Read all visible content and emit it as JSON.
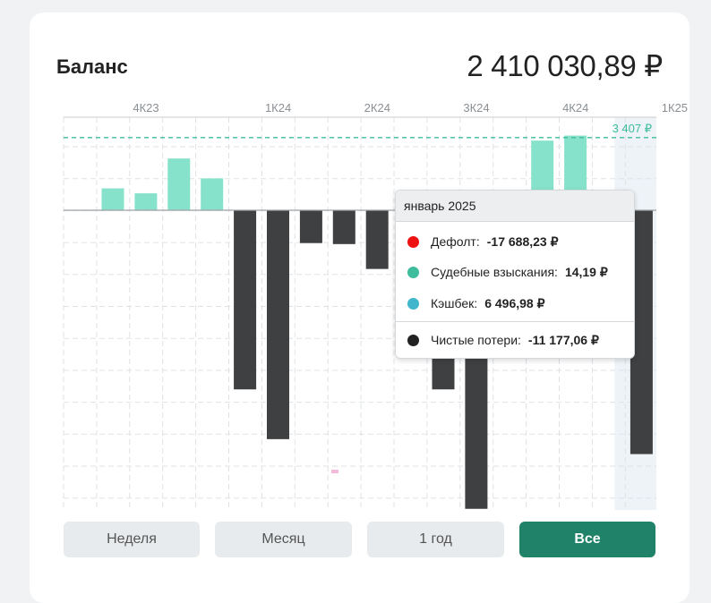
{
  "header": {
    "title": "Баланс",
    "amount": "2 410 030,89 ₽"
  },
  "chart_data": {
    "type": "bar",
    "categories": [
      "4К23",
      "",
      "",
      "",
      "1К24",
      "",
      "",
      "2К24",
      "",
      "",
      "3К24",
      "",
      "",
      "4К24",
      "",
      "",
      "1К25"
    ],
    "quarter_ticks": [
      "4К23",
      "1К24",
      "2К24",
      "3К24",
      "4К24",
      "1К25"
    ],
    "values": [
      2200,
      1700,
      5200,
      3200,
      -18000,
      -23000,
      -3300,
      -3400,
      -5900,
      null,
      -18000,
      -30000,
      null,
      7000,
      7500,
      0,
      -24500
    ],
    "reference_line": {
      "value": 7300,
      "label": "3 407 ₽"
    },
    "highlighted_category_index": 16,
    "colors": {
      "positive": "#86e2cb",
      "negative": "#3f4042",
      "reference": "#3dbd9c",
      "highlight": "#eef3f8"
    }
  },
  "tooltip": {
    "title": "январь 2025",
    "rows": [
      {
        "label": "Дефолт:",
        "value": "-17 688,23 ₽",
        "color": "#ee1111"
      },
      {
        "label": "Судебные взыскания:",
        "value": "14,19 ₽",
        "color": "#3dbd9c"
      },
      {
        "label": "Кэшбек:",
        "value": "6 496,98 ₽",
        "color": "#3fb6cb"
      }
    ],
    "total": {
      "label": "Чистые потери:",
      "value": "-11 177,06 ₽",
      "color": "#222222"
    }
  },
  "period_buttons": [
    {
      "label": "Неделя",
      "active": false
    },
    {
      "label": "Месяц",
      "active": false
    },
    {
      "label": "1 год",
      "active": false
    },
    {
      "label": "Все",
      "active": true
    }
  ],
  "colors": {
    "accent": "#208369",
    "button_bg": "#e8ebed"
  }
}
